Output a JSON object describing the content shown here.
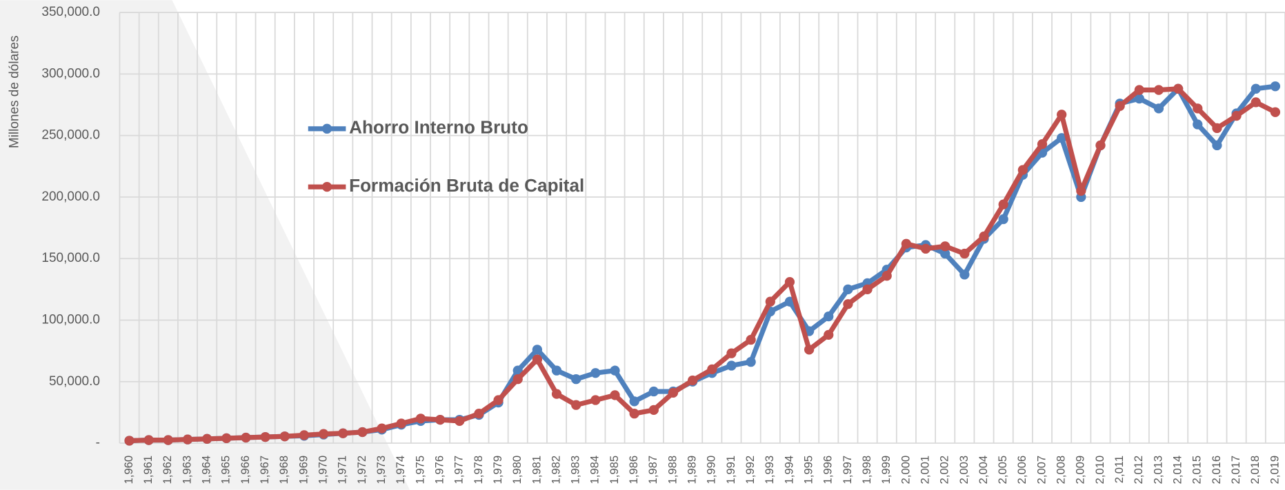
{
  "chart_data": {
    "type": "line",
    "y_axis_label": "Millones de dólares",
    "categories": [
      "1,960",
      "1,961",
      "1,962",
      "1,963",
      "1,964",
      "1,965",
      "1,966",
      "1,967",
      "1,968",
      "1,969",
      "1,970",
      "1,971",
      "1,972",
      "1,973",
      "1,974",
      "1,975",
      "1,976",
      "1,977",
      "1,978",
      "1,979",
      "1,980",
      "1,981",
      "1,982",
      "1,983",
      "1,984",
      "1,985",
      "1,986",
      "1,987",
      "1,988",
      "1,989",
      "1,990",
      "1,991",
      "1,992",
      "1,993",
      "1,994",
      "1,995",
      "1,996",
      "1,997",
      "1,998",
      "1,999",
      "2,000",
      "2,001",
      "2,002",
      "2,003",
      "2,004",
      "2,005",
      "2,006",
      "2,007",
      "2,008",
      "2,009",
      "2,010",
      "2,011",
      "2,012",
      "2,013",
      "2,014",
      "2,015",
      "2,016",
      "2,017",
      "2,018",
      "2,019"
    ],
    "series": [
      {
        "name": "Ahorro Interno Bruto",
        "color": "#4f81bd",
        "values": [
          2000,
          2500,
          2500,
          3000,
          3500,
          4000,
          4500,
          5000,
          5500,
          6000,
          7000,
          8000,
          9000,
          11000,
          15000,
          18000,
          19000,
          19000,
          23000,
          33000,
          59000,
          76000,
          59000,
          52000,
          57000,
          59000,
          34000,
          42000,
          42000,
          50000,
          57000,
          63000,
          66000,
          107000,
          115000,
          91000,
          103000,
          125000,
          130000,
          141000,
          159000,
          161000,
          154000,
          137000,
          166000,
          182000,
          218000,
          236000,
          248000,
          200000,
          242000,
          276000,
          280000,
          272000,
          288000,
          259000,
          242000,
          268000,
          288000,
          290000
        ]
      },
      {
        "name": "Formación Bruta de Capital",
        "color": "#c0504d",
        "values": [
          2000,
          2500,
          2500,
          3000,
          3500,
          4000,
          4500,
          5000,
          5500,
          6500,
          7500,
          8000,
          9000,
          12000,
          16000,
          20000,
          19000,
          18000,
          24000,
          35000,
          52000,
          68000,
          40000,
          31000,
          35000,
          39000,
          24000,
          27000,
          41000,
          51000,
          60000,
          73000,
          84000,
          115000,
          131000,
          76000,
          88000,
          113000,
          125000,
          136000,
          162000,
          158000,
          160000,
          154000,
          168000,
          194000,
          222000,
          243000,
          267000,
          205000,
          242000,
          274000,
          287000,
          287000,
          288000,
          272000,
          256000,
          266000,
          277000,
          269000
        ]
      }
    ],
    "ylim": [
      0,
      350000
    ],
    "yticks": [
      {
        "value": 0,
        "label": "-"
      },
      {
        "value": 50000,
        "label": "50,000.0"
      },
      {
        "value": 100000,
        "label": "100,000.0"
      },
      {
        "value": 150000,
        "label": "150,000.0"
      },
      {
        "value": 200000,
        "label": "200,000.0"
      },
      {
        "value": 250000,
        "label": "250,000.0"
      },
      {
        "value": 300000,
        "label": "300,000.0"
      },
      {
        "value": 350000,
        "label": "350,000.0"
      }
    ],
    "grid": true,
    "legend": "upper left"
  }
}
